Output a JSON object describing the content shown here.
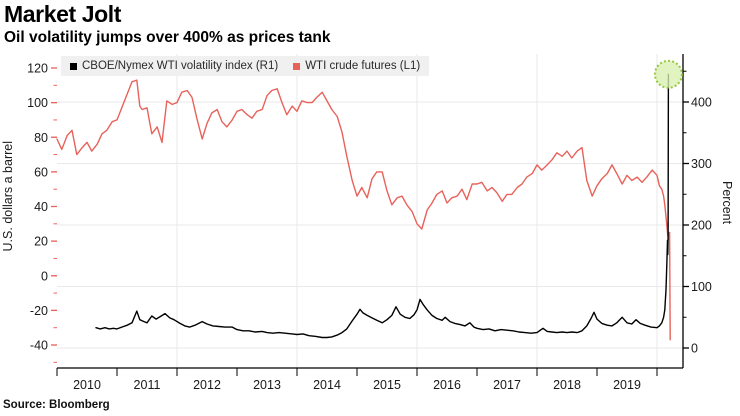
{
  "header": {
    "title": "Market Jolt",
    "subtitle": "Oil volatility jumps over 400% as prices tank"
  },
  "footer": {
    "source": "Source: Bloomberg"
  },
  "legend": {
    "items": [
      {
        "label": "CBOE/Nymex WTI volatility index (R1)",
        "color": "#000000"
      },
      {
        "label": "WTI crude futures (L1)",
        "color": "#e8625b"
      }
    ]
  },
  "chart_data": {
    "type": "line",
    "title": "Market Jolt",
    "subtitle": "Oil volatility jumps over 400% as prices tank",
    "grid_color": "#e9e9e9",
    "x_axis": {
      "labels": [
        "2010",
        "2011",
        "2012",
        "2013",
        "2014",
        "2015",
        "2016",
        "2017",
        "2018",
        "2019"
      ],
      "year_ticks": [
        2010,
        2011,
        2012,
        2013,
        2014,
        2015,
        2016,
        2017,
        2018,
        2019,
        2020
      ],
      "gridline_years": [
        2012,
        2014,
        2016,
        2018,
        2020
      ],
      "range": [
        2010,
        2020.43
      ]
    },
    "left_axis": {
      "label": "U.S. dollars a barrel",
      "ticks": [
        120,
        100,
        80,
        60,
        40,
        20,
        0,
        -20,
        -40
      ],
      "minor_step": 10,
      "minor_range": [
        -50,
        120
      ],
      "tick_color": "#e8625b"
    },
    "right_axis": {
      "label": "Percent",
      "ticks": [
        400,
        300,
        200,
        100,
        0
      ],
      "minor_step": 50,
      "minor_range": [
        0,
        450
      ],
      "tick_color": "#000000"
    },
    "annotation": {
      "type": "circle-highlight",
      "x": 2020.19,
      "value": 445,
      "axis": "right",
      "fill": "#d8efae",
      "stroke": "#94c83d"
    },
    "series": [
      {
        "name": "WTI crude futures (L1)",
        "axis": "left",
        "color": "#e8625b",
        "points": [
          [
            2010.0,
            79
          ],
          [
            2010.08,
            73
          ],
          [
            2010.17,
            81
          ],
          [
            2010.25,
            84
          ],
          [
            2010.33,
            70
          ],
          [
            2010.42,
            74
          ],
          [
            2010.5,
            77
          ],
          [
            2010.58,
            72
          ],
          [
            2010.67,
            76
          ],
          [
            2010.75,
            82
          ],
          [
            2010.83,
            84
          ],
          [
            2010.92,
            89
          ],
          [
            2011.0,
            90
          ],
          [
            2011.08,
            97
          ],
          [
            2011.17,
            105
          ],
          [
            2011.25,
            112
          ],
          [
            2011.33,
            113
          ],
          [
            2011.38,
            98
          ],
          [
            2011.42,
            96
          ],
          [
            2011.5,
            97
          ],
          [
            2011.58,
            82
          ],
          [
            2011.67,
            86
          ],
          [
            2011.75,
            77
          ],
          [
            2011.83,
            101
          ],
          [
            2011.92,
            99
          ],
          [
            2012.0,
            100
          ],
          [
            2012.08,
            106
          ],
          [
            2012.17,
            107
          ],
          [
            2012.25,
            103
          ],
          [
            2012.33,
            91
          ],
          [
            2012.42,
            79
          ],
          [
            2012.5,
            88
          ],
          [
            2012.58,
            94
          ],
          [
            2012.67,
            96
          ],
          [
            2012.75,
            89
          ],
          [
            2012.83,
            86
          ],
          [
            2012.92,
            90
          ],
          [
            2013.0,
            95
          ],
          [
            2013.08,
            96
          ],
          [
            2013.17,
            93
          ],
          [
            2013.25,
            91
          ],
          [
            2013.33,
            95
          ],
          [
            2013.42,
            96
          ],
          [
            2013.5,
            104
          ],
          [
            2013.58,
            107
          ],
          [
            2013.67,
            108
          ],
          [
            2013.75,
            100
          ],
          [
            2013.83,
            93
          ],
          [
            2013.92,
            98
          ],
          [
            2014.0,
            95
          ],
          [
            2014.08,
            101
          ],
          [
            2014.17,
            100
          ],
          [
            2014.25,
            100
          ],
          [
            2014.33,
            103
          ],
          [
            2014.42,
            106
          ],
          [
            2014.5,
            101
          ],
          [
            2014.58,
            96
          ],
          [
            2014.67,
            92
          ],
          [
            2014.75,
            83
          ],
          [
            2014.83,
            69
          ],
          [
            2014.92,
            55
          ],
          [
            2015.0,
            46
          ],
          [
            2015.08,
            51
          ],
          [
            2015.17,
            45
          ],
          [
            2015.25,
            56
          ],
          [
            2015.33,
            60
          ],
          [
            2015.42,
            60
          ],
          [
            2015.5,
            49
          ],
          [
            2015.58,
            41
          ],
          [
            2015.67,
            45
          ],
          [
            2015.75,
            46
          ],
          [
            2015.83,
            41
          ],
          [
            2015.92,
            37
          ],
          [
            2016.0,
            30
          ],
          [
            2016.08,
            27
          ],
          [
            2016.17,
            38
          ],
          [
            2016.25,
            42
          ],
          [
            2016.33,
            47
          ],
          [
            2016.42,
            49
          ],
          [
            2016.5,
            42
          ],
          [
            2016.58,
            45
          ],
          [
            2016.67,
            46
          ],
          [
            2016.75,
            50
          ],
          [
            2016.83,
            44
          ],
          [
            2016.92,
            53
          ],
          [
            2017.0,
            53
          ],
          [
            2017.08,
            54
          ],
          [
            2017.17,
            49
          ],
          [
            2017.25,
            51
          ],
          [
            2017.33,
            48
          ],
          [
            2017.42,
            43
          ],
          [
            2017.5,
            47
          ],
          [
            2017.58,
            47
          ],
          [
            2017.67,
            51
          ],
          [
            2017.75,
            53
          ],
          [
            2017.83,
            57
          ],
          [
            2017.92,
            59
          ],
          [
            2018.0,
            64
          ],
          [
            2018.08,
            61
          ],
          [
            2018.17,
            64
          ],
          [
            2018.25,
            67
          ],
          [
            2018.33,
            71
          ],
          [
            2018.42,
            69
          ],
          [
            2018.5,
            72
          ],
          [
            2018.58,
            68
          ],
          [
            2018.67,
            72
          ],
          [
            2018.75,
            74
          ],
          [
            2018.83,
            55
          ],
          [
            2018.92,
            46
          ],
          [
            2019.0,
            52
          ],
          [
            2019.08,
            56
          ],
          [
            2019.17,
            59
          ],
          [
            2019.25,
            64
          ],
          [
            2019.33,
            59
          ],
          [
            2019.42,
            53
          ],
          [
            2019.5,
            58
          ],
          [
            2019.58,
            55
          ],
          [
            2019.67,
            57
          ],
          [
            2019.75,
            54
          ],
          [
            2019.83,
            57
          ],
          [
            2019.92,
            61
          ],
          [
            2020.0,
            58
          ],
          [
            2020.04,
            52
          ],
          [
            2020.08,
            50
          ],
          [
            2020.11,
            46
          ],
          [
            2020.13,
            41
          ],
          [
            2020.15,
            34
          ],
          [
            2020.17,
            27
          ],
          [
            2020.18,
            23
          ],
          [
            2020.19,
            25
          ],
          [
            2020.2,
            21
          ],
          [
            2020.21,
            25
          ],
          [
            2020.22,
            -37
          ]
        ]
      },
      {
        "name": "CBOE/Nymex WTI volatility index (R1)",
        "axis": "right",
        "color": "#000000",
        "points": [
          [
            2010.65,
            33
          ],
          [
            2010.72,
            31
          ],
          [
            2010.8,
            33
          ],
          [
            2010.87,
            31
          ],
          [
            2010.94,
            32
          ],
          [
            2011.0,
            31
          ],
          [
            2011.08,
            34
          ],
          [
            2011.17,
            37
          ],
          [
            2011.25,
            41
          ],
          [
            2011.33,
            60
          ],
          [
            2011.38,
            46
          ],
          [
            2011.45,
            43
          ],
          [
            2011.5,
            41
          ],
          [
            2011.58,
            52
          ],
          [
            2011.65,
            47
          ],
          [
            2011.72,
            51
          ],
          [
            2011.8,
            56
          ],
          [
            2011.88,
            49
          ],
          [
            2011.95,
            46
          ],
          [
            2012.05,
            40
          ],
          [
            2012.13,
            36
          ],
          [
            2012.21,
            34
          ],
          [
            2012.3,
            37
          ],
          [
            2012.42,
            43
          ],
          [
            2012.5,
            39
          ],
          [
            2012.6,
            36
          ],
          [
            2012.7,
            35
          ],
          [
            2012.8,
            34
          ],
          [
            2012.92,
            34
          ],
          [
            2013.0,
            30
          ],
          [
            2013.1,
            28
          ],
          [
            2013.2,
            28
          ],
          [
            2013.3,
            26
          ],
          [
            2013.42,
            27
          ],
          [
            2013.5,
            25
          ],
          [
            2013.6,
            24
          ],
          [
            2013.7,
            25
          ],
          [
            2013.8,
            24
          ],
          [
            2013.92,
            23
          ],
          [
            2014.0,
            22
          ],
          [
            2014.1,
            23
          ],
          [
            2014.2,
            20
          ],
          [
            2014.3,
            19
          ],
          [
            2014.42,
            17
          ],
          [
            2014.5,
            17
          ],
          [
            2014.58,
            18
          ],
          [
            2014.67,
            21
          ],
          [
            2014.75,
            25
          ],
          [
            2014.83,
            31
          ],
          [
            2014.92,
            44
          ],
          [
            2015.0,
            55
          ],
          [
            2015.05,
            63
          ],
          [
            2015.1,
            57
          ],
          [
            2015.17,
            53
          ],
          [
            2015.25,
            49
          ],
          [
            2015.33,
            45
          ],
          [
            2015.42,
            41
          ],
          [
            2015.5,
            46
          ],
          [
            2015.58,
            53
          ],
          [
            2015.65,
            67
          ],
          [
            2015.72,
            55
          ],
          [
            2015.8,
            50
          ],
          [
            2015.88,
            48
          ],
          [
            2015.95,
            54
          ],
          [
            2016.0,
            62
          ],
          [
            2016.05,
            79
          ],
          [
            2016.1,
            71
          ],
          [
            2016.17,
            62
          ],
          [
            2016.25,
            53
          ],
          [
            2016.33,
            48
          ],
          [
            2016.42,
            45
          ],
          [
            2016.47,
            50
          ],
          [
            2016.55,
            43
          ],
          [
            2016.63,
            40
          ],
          [
            2016.72,
            38
          ],
          [
            2016.8,
            36
          ],
          [
            2016.88,
            41
          ],
          [
            2016.95,
            34
          ],
          [
            2017.0,
            32
          ],
          [
            2017.1,
            30
          ],
          [
            2017.2,
            31
          ],
          [
            2017.3,
            28
          ],
          [
            2017.4,
            30
          ],
          [
            2017.5,
            29
          ],
          [
            2017.6,
            28
          ],
          [
            2017.7,
            26
          ],
          [
            2017.8,
            25
          ],
          [
            2017.9,
            24
          ],
          [
            2018.0,
            25
          ],
          [
            2018.1,
            32
          ],
          [
            2018.17,
            27
          ],
          [
            2018.25,
            26
          ],
          [
            2018.33,
            25
          ],
          [
            2018.42,
            26
          ],
          [
            2018.5,
            25
          ],
          [
            2018.58,
            26
          ],
          [
            2018.67,
            25
          ],
          [
            2018.75,
            28
          ],
          [
            2018.83,
            36
          ],
          [
            2018.9,
            48
          ],
          [
            2018.95,
            58
          ],
          [
            2019.0,
            47
          ],
          [
            2019.08,
            40
          ],
          [
            2019.17,
            37
          ],
          [
            2019.25,
            36
          ],
          [
            2019.33,
            41
          ],
          [
            2019.42,
            50
          ],
          [
            2019.5,
            41
          ],
          [
            2019.58,
            39
          ],
          [
            2019.65,
            46
          ],
          [
            2019.72,
            40
          ],
          [
            2019.8,
            37
          ],
          [
            2019.9,
            34
          ],
          [
            2020.0,
            33
          ],
          [
            2020.04,
            36
          ],
          [
            2020.08,
            41
          ],
          [
            2020.11,
            50
          ],
          [
            2020.13,
            62
          ],
          [
            2020.15,
            95
          ],
          [
            2020.165,
            140
          ],
          [
            2020.175,
            175
          ],
          [
            2020.18,
            152
          ],
          [
            2020.185,
            182
          ],
          [
            2020.19,
            445
          ]
        ]
      }
    ]
  }
}
